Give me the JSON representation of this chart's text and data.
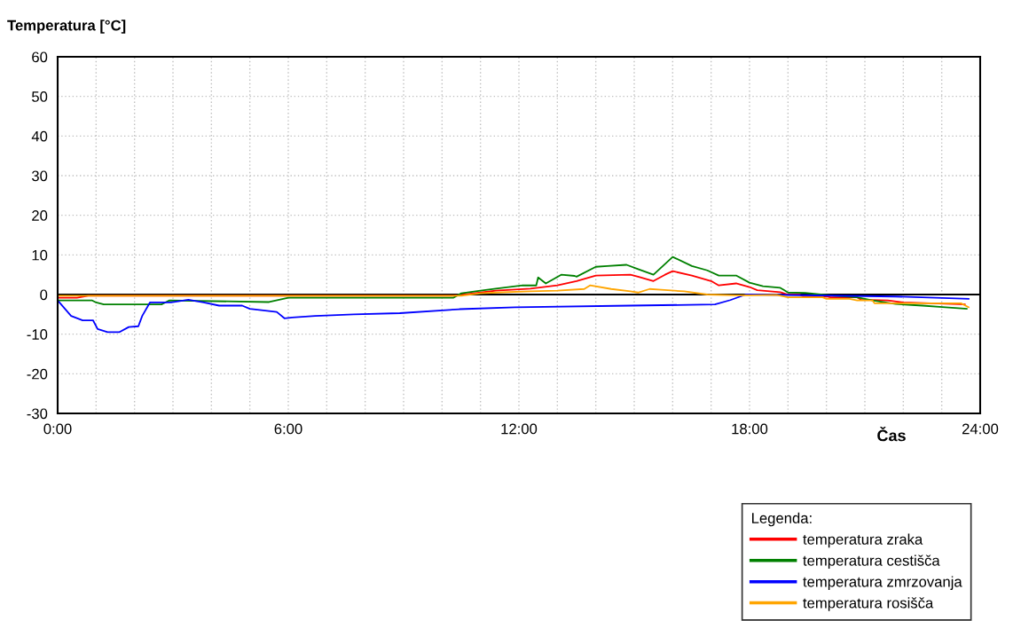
{
  "chart_data": {
    "type": "line",
    "title": "Temperatura [°C]",
    "xlabel": "Čas",
    "legend_title": "Legenda:",
    "xlim": [
      0,
      24
    ],
    "ylim": [
      -30,
      60
    ],
    "yticks": [
      -30,
      -20,
      -10,
      0,
      10,
      20,
      30,
      40,
      50,
      60
    ],
    "xticks": [
      {
        "value": 0,
        "label": "0:00"
      },
      {
        "value": 1,
        "label": null
      },
      {
        "value": 2,
        "label": null
      },
      {
        "value": 3,
        "label": null
      },
      {
        "value": 4,
        "label": null
      },
      {
        "value": 5,
        "label": null
      },
      {
        "value": 6,
        "label": "6:00"
      },
      {
        "value": 7,
        "label": null
      },
      {
        "value": 8,
        "label": null
      },
      {
        "value": 9,
        "label": null
      },
      {
        "value": 10,
        "label": null
      },
      {
        "value": 11,
        "label": null
      },
      {
        "value": 12,
        "label": "12:00"
      },
      {
        "value": 13,
        "label": null
      },
      {
        "value": 14,
        "label": null
      },
      {
        "value": 15,
        "label": null
      },
      {
        "value": 16,
        "label": null
      },
      {
        "value": 17,
        "label": null
      },
      {
        "value": 18,
        "label": "18:00"
      },
      {
        "value": 19,
        "label": null
      },
      {
        "value": 20,
        "label": null
      },
      {
        "value": 21,
        "label": null
      },
      {
        "value": 22,
        "label": null
      },
      {
        "value": 23,
        "label": null
      },
      {
        "value": 24,
        "label": "24:00"
      }
    ],
    "grid": true,
    "legend": "bottom right",
    "marker": "none",
    "line_style": "solid",
    "ref_lines": [
      {
        "axis": "y",
        "value": 0,
        "color": "#000000"
      }
    ],
    "series": [
      {
        "name": "temperatura zraka",
        "color": "#ff0000",
        "x": [
          0,
          0.5,
          0.8,
          10.3,
          11,
          11.4,
          12.3,
          13.0,
          13.5,
          14.0,
          14.9,
          15.1,
          15.5,
          15.8,
          16.0,
          16.5,
          17.0,
          17.2,
          17.65,
          18.0,
          18.2,
          18.8,
          19.0,
          19.3,
          19.4,
          20.0,
          20.1,
          20.8,
          20.9,
          21.6,
          22.0,
          23.6
        ],
        "values": [
          -0.8,
          -0.8,
          -0.3,
          -0.3,
          0.5,
          1,
          1.5,
          2.3,
          3.4,
          4.8,
          5,
          4.5,
          3.4,
          5,
          5.9,
          4.8,
          3.4,
          2.3,
          2.8,
          1.9,
          1.1,
          0.6,
          0,
          0,
          -0.5,
          -0.5,
          -0.7,
          -0.7,
          -1.3,
          -1.5,
          -2,
          -2.5
        ]
      },
      {
        "name": "temperatura cestišča",
        "color": "#008000",
        "x": [
          0,
          0.9,
          1.0,
          1.2,
          2.7,
          2.9,
          5.5,
          6.0,
          10.3,
          10.5,
          11,
          11.4,
          12.1,
          12.45,
          12.5,
          12.7,
          13.1,
          13.45,
          13.5,
          14.0,
          14.3,
          14.8,
          15.1,
          15.5,
          16.0,
          16.5,
          16.9,
          17.2,
          17.65,
          18.0,
          18.35,
          18.8,
          18.9,
          19.0,
          19.45,
          20.2,
          20.8,
          21.2,
          21.8,
          22.5,
          23.1,
          23.65
        ],
        "values": [
          -1.5,
          -1.5,
          -2,
          -2.5,
          -2.5,
          -1.5,
          -1.9,
          -0.8,
          -0.8,
          0.3,
          1,
          1.5,
          2.3,
          2.3,
          4.3,
          2.8,
          5,
          4.7,
          4.5,
          7,
          7.2,
          7.5,
          6.4,
          5,
          9.5,
          7.2,
          6.1,
          4.8,
          4.8,
          3,
          2.1,
          1.7,
          1.1,
          0.5,
          0.4,
          -0.3,
          -0.7,
          -1.5,
          -2.4,
          -2.8,
          -3.2,
          -3.6
        ]
      },
      {
        "name": "temperatura zmrzovanja",
        "color": "#0000ff",
        "x": [
          0,
          0.35,
          0.65,
          0.92,
          1.04,
          1.3,
          1.6,
          1.85,
          2.1,
          2.2,
          2.4,
          2.95,
          3.4,
          3.8,
          4.2,
          4.8,
          5.0,
          5.7,
          5.9,
          6.1,
          6.7,
          7.7,
          8.9,
          10.45,
          11.9,
          14.9,
          17.1,
          17.5,
          17.9,
          18.1,
          21.8,
          23.7
        ],
        "values": [
          -1.5,
          -5.4,
          -6.5,
          -6.5,
          -8.7,
          -9.5,
          -9.5,
          -8.2,
          -8,
          -5.4,
          -2,
          -2,
          -1.3,
          -2,
          -2.8,
          -2.8,
          -3.6,
          -4.4,
          -6,
          -5.8,
          -5.4,
          -5,
          -4.7,
          -3.7,
          -3.2,
          -2.8,
          -2.5,
          -1.4,
          0,
          0,
          -0.5,
          -1.1
        ]
      },
      {
        "name": "temperatura rosišča",
        "color": "#ffa500",
        "x": [
          0,
          10.5,
          11,
          11.4,
          12.3,
          13.0,
          13.7,
          13.85,
          14.4,
          14.9,
          15.1,
          15.4,
          15.7,
          16.3,
          16.9,
          17.65,
          18.0,
          18.7,
          19.0,
          19.9,
          20.0,
          20.6,
          20.8,
          21.2,
          21.25,
          23.5,
          23.7
        ],
        "values": [
          -0.3,
          -0.3,
          0.3,
          0.5,
          0.8,
          1,
          1.4,
          2.3,
          1.4,
          0.8,
          0.5,
          1.4,
          1.2,
          0.8,
          0,
          -0.2,
          -0.2,
          -0.1,
          -0.7,
          -0.7,
          -1.1,
          -1.1,
          -1.5,
          -1.5,
          -2.2,
          -2.2,
          -3.2
        ]
      }
    ]
  }
}
